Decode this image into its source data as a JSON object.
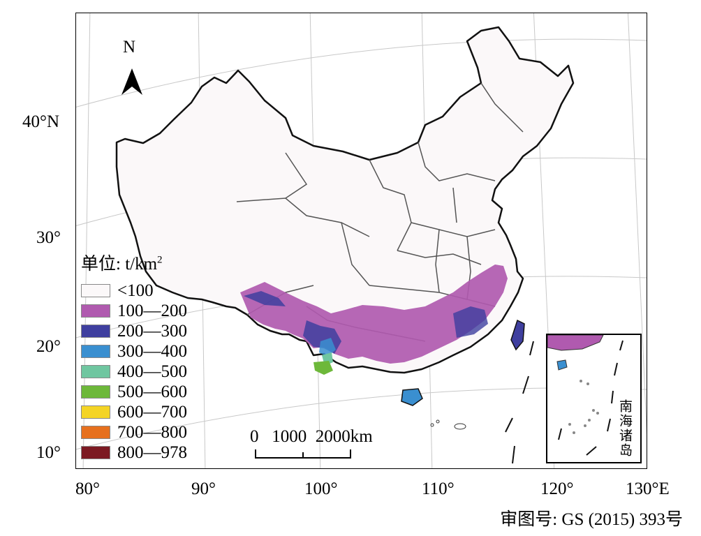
{
  "map": {
    "lat_labels": [
      "40°N",
      "30°",
      "20°",
      "10°"
    ],
    "lon_labels": [
      "80°",
      "90°",
      "100°",
      "110°",
      "120°",
      "130°E"
    ],
    "north_label": "N",
    "scale_bar_label": "0   1000  2000km",
    "inset_label": "南海诸岛",
    "approval_number": "审图号: GS (2015) 393号"
  },
  "legend": {
    "title": "单位: t/km",
    "title_superscript": "2",
    "classes": [
      {
        "label": "<100",
        "color": "#fbf8f9"
      },
      {
        "label": "100—200",
        "color": "#b05aaf"
      },
      {
        "label": "200—300",
        "color": "#3f3f9f"
      },
      {
        "label": "300—400",
        "color": "#3a8fd0"
      },
      {
        "label": "400—500",
        "color": "#6fc6a0"
      },
      {
        "label": "500—600",
        "color": "#6db83a"
      },
      {
        "label": "600—700",
        "color": "#f4d425"
      },
      {
        "label": "700—800",
        "color": "#e6701e"
      },
      {
        "label": "800—978",
        "color": "#7c1a22"
      }
    ]
  }
}
